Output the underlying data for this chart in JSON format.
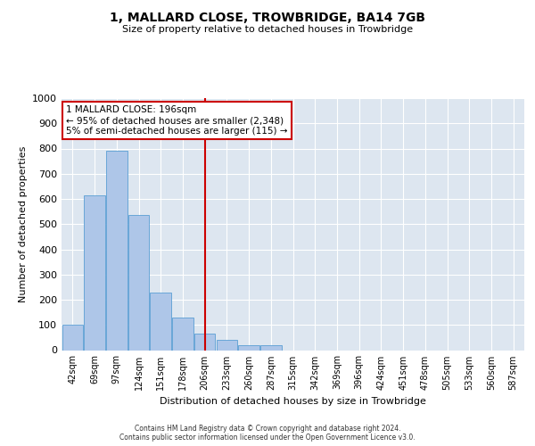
{
  "title1": "1, MALLARD CLOSE, TROWBRIDGE, BA14 7GB",
  "title2": "Size of property relative to detached houses in Trowbridge",
  "xlabel": "Distribution of detached houses by size in Trowbridge",
  "ylabel": "Number of detached properties",
  "bin_labels": [
    "42sqm",
    "69sqm",
    "97sqm",
    "124sqm",
    "151sqm",
    "178sqm",
    "206sqm",
    "233sqm",
    "260sqm",
    "287sqm",
    "315sqm",
    "342sqm",
    "369sqm",
    "396sqm",
    "424sqm",
    "451sqm",
    "478sqm",
    "505sqm",
    "533sqm",
    "560sqm",
    "587sqm"
  ],
  "bar_values": [
    100,
    615,
    790,
    535,
    230,
    130,
    65,
    40,
    20,
    20,
    0,
    0,
    0,
    0,
    0,
    0,
    0,
    0,
    0,
    0,
    0
  ],
  "bar_color": "#aec6e8",
  "bar_edge_color": "#5a9fd4",
  "vline_color": "#cc0000",
  "annotation_box_color": "#cc0000",
  "ylim": [
    0,
    1000
  ],
  "yticks": [
    0,
    100,
    200,
    300,
    400,
    500,
    600,
    700,
    800,
    900,
    1000
  ],
  "bg_color": "#dde6f0",
  "footer1": "Contains HM Land Registry data © Crown copyright and database right 2024.",
  "footer2": "Contains public sector information licensed under the Open Government Licence v3.0.",
  "ann_title": "1 MALLARD CLOSE: 196sqm",
  "ann_line1": "← 95% of detached houses are smaller (2,348)",
  "ann_line2": "5% of semi-detached houses are larger (115) →"
}
